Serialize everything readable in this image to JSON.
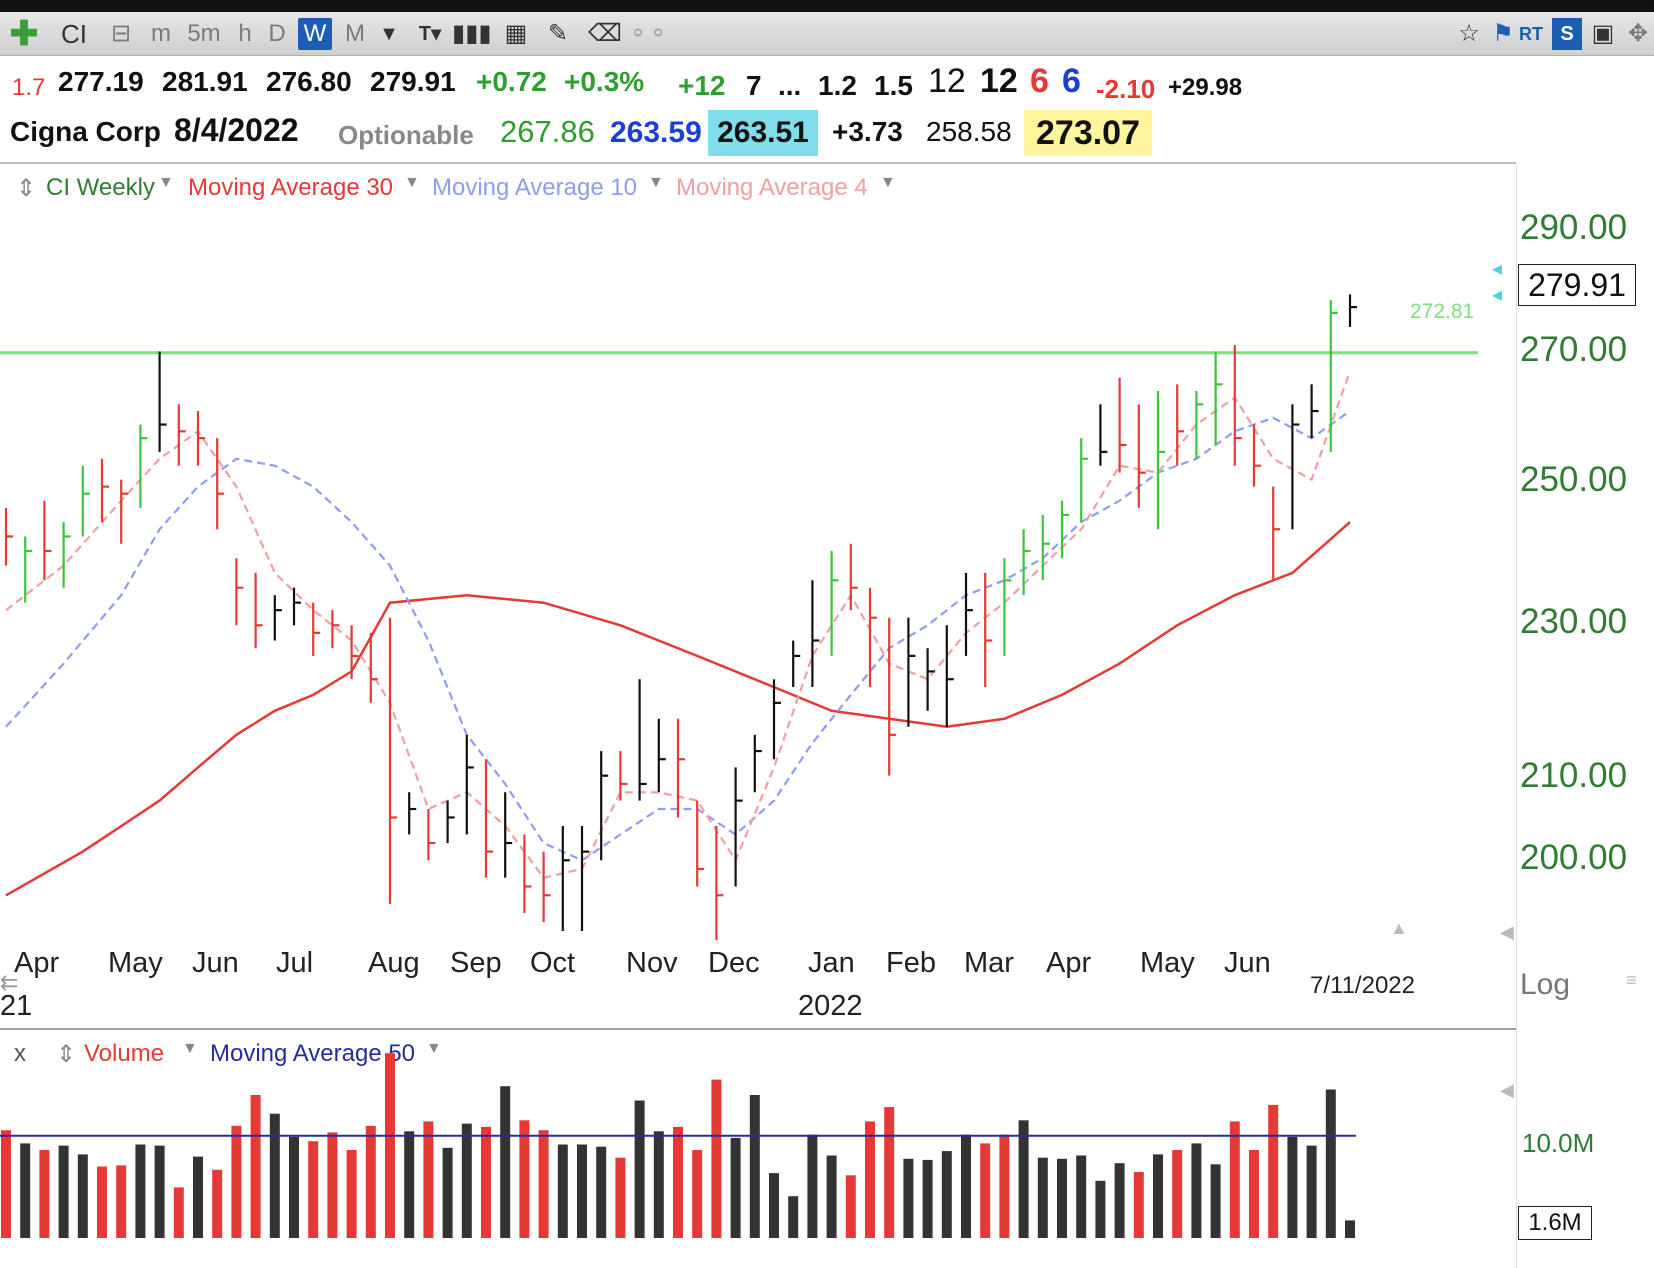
{
  "toolbar": {
    "symbol": "CI",
    "timeframes": [
      "m",
      "5m",
      "h",
      "D",
      "W",
      "M"
    ],
    "active_timeframe": "W",
    "right_badges": {
      "rt": "RT",
      "s": "S"
    }
  },
  "quote": {
    "prev": "1.7",
    "open": "277.19",
    "high": "281.91",
    "low": "276.80",
    "close": "279.91",
    "change": "+0.72",
    "change_pct": "+0.3%",
    "f1": "+12",
    "f2": "7",
    "f3": "...",
    "f4": "1.2",
    "f5": "1.5",
    "f6": "12",
    "f7": "12",
    "f8": "6",
    "f9": "6",
    "f10": "-2.10",
    "f11": "+29.98",
    "company": "Cigna Corp",
    "date": "8/4/2022",
    "optionable": "Optionable",
    "v1": "267.86",
    "v2": "263.59",
    "v3": "263.51",
    "v4": "+3.73",
    "v5": "258.58",
    "v6": "273.07"
  },
  "legend": {
    "series": "CI Weekly",
    "ma30": "Moving Average 30",
    "ma10": "Moving Average 10",
    "ma4": "Moving Average 4",
    "volume_close": "x",
    "volume": "Volume",
    "vol_ma": "Moving Average 50"
  },
  "colors": {
    "up_bar": "#3cc43c",
    "down_bar": "#e53935",
    "neutral_bar": "#111111",
    "ma30": "#e53935",
    "ma10": "#8f9cf0",
    "ma4": "#f0a0a0",
    "hline": "#7ee07e",
    "vol_ma": "#2a2a9e",
    "axis_text": "#2e7d32"
  },
  "y_axis": {
    "ticks": [
      "290.00",
      "270.00",
      "250.00",
      "230.00",
      "210.00",
      "200.00"
    ],
    "scale": "log",
    "scale_label": "Log",
    "last_price_label": "279.91"
  },
  "h_line": {
    "value": 272.81,
    "label": "272.81"
  },
  "x_axis": {
    "months": [
      "Apr",
      "May",
      "Jun",
      "Jul",
      "Aug",
      "Sep",
      "Oct",
      "Nov",
      "Dec",
      "Jan",
      "Feb",
      "Mar",
      "Apr",
      "May",
      "Jun"
    ],
    "year_label": "2022",
    "year_fragment": "21",
    "current_date": "7/11/2022"
  },
  "volume_axis": {
    "tick": "10.0M",
    "current": "1.6M"
  },
  "chart_data": {
    "type": "ohlc",
    "interval": "weekly",
    "scale": "log",
    "ylim": [
      196,
      300
    ],
    "bars": [
      {
        "h": 250,
        "l": 242,
        "c": 246,
        "t": "d"
      },
      {
        "h": 246,
        "l": 237,
        "c": 244,
        "t": "u"
      },
      {
        "h": 251,
        "l": 240,
        "c": 244,
        "t": "d"
      },
      {
        "h": 248,
        "l": 239,
        "c": 246,
        "t": "u"
      },
      {
        "h": 256,
        "l": 246,
        "c": 252,
        "t": "u"
      },
      {
        "h": 257,
        "l": 248,
        "c": 253,
        "t": "d"
      },
      {
        "h": 254,
        "l": 245,
        "c": 252,
        "t": "d"
      },
      {
        "h": 262,
        "l": 250,
        "c": 260,
        "t": "u"
      },
      {
        "h": 273,
        "l": 258,
        "c": 262,
        "t": "n"
      },
      {
        "h": 265,
        "l": 256,
        "c": 261,
        "t": "d"
      },
      {
        "h": 264,
        "l": 256,
        "c": 260,
        "t": "d"
      },
      {
        "h": 260,
        "l": 247,
        "c": 252,
        "t": "d"
      },
      {
        "h": 243,
        "l": 234,
        "c": 239,
        "t": "d"
      },
      {
        "h": 241,
        "l": 231,
        "c": 234,
        "t": "d"
      },
      {
        "h": 238,
        "l": 232,
        "c": 236,
        "t": "n"
      },
      {
        "h": 239,
        "l": 234,
        "c": 237,
        "t": "n"
      },
      {
        "h": 237,
        "l": 230,
        "c": 233,
        "t": "d"
      },
      {
        "h": 236,
        "l": 231,
        "c": 234,
        "t": "d"
      },
      {
        "h": 234,
        "l": 227,
        "c": 230,
        "t": "d"
      },
      {
        "h": 233,
        "l": 224,
        "c": 227,
        "t": "d"
      },
      {
        "h": 235,
        "l": 200,
        "c": 210,
        "t": "d"
      },
      {
        "h": 213,
        "l": 208,
        "c": 211,
        "t": "n"
      },
      {
        "h": 211,
        "l": 205,
        "c": 207,
        "t": "d"
      },
      {
        "h": 212,
        "l": 207,
        "c": 210,
        "t": "n"
      },
      {
        "h": 220,
        "l": 208,
        "c": 216,
        "t": "n"
      },
      {
        "h": 217,
        "l": 203,
        "c": 206,
        "t": "d"
      },
      {
        "h": 213,
        "l": 203,
        "c": 207,
        "t": "n"
      },
      {
        "h": 208,
        "l": 199,
        "c": 202,
        "t": "d"
      },
      {
        "h": 206,
        "l": 198,
        "c": 201,
        "t": "d"
      },
      {
        "h": 209,
        "l": 197,
        "c": 205,
        "t": "n"
      },
      {
        "h": 209,
        "l": 197,
        "c": 206,
        "t": "n"
      },
      {
        "h": 218,
        "l": 205,
        "c": 215,
        "t": "n"
      },
      {
        "h": 218,
        "l": 212,
        "c": 214,
        "t": "d"
      },
      {
        "h": 227,
        "l": 212,
        "c": 214,
        "t": "n"
      },
      {
        "h": 222,
        "l": 213,
        "c": 217,
        "t": "n"
      },
      {
        "h": 222,
        "l": 210,
        "c": 217,
        "t": "d"
      },
      {
        "h": 212,
        "l": 202,
        "c": 204,
        "t": "d"
      },
      {
        "h": 209,
        "l": 196,
        "c": 201,
        "t": "d"
      },
      {
        "h": 216,
        "l": 202,
        "c": 212,
        "t": "n"
      },
      {
        "h": 220,
        "l": 213,
        "c": 218,
        "t": "n"
      },
      {
        "h": 227,
        "l": 217,
        "c": 224,
        "t": "n"
      },
      {
        "h": 232,
        "l": 226,
        "c": 230,
        "t": "n"
      },
      {
        "h": 240,
        "l": 226,
        "c": 232,
        "t": "n"
      },
      {
        "h": 244,
        "l": 230,
        "c": 240,
        "t": "u"
      },
      {
        "h": 245,
        "l": 236,
        "c": 239,
        "t": "d"
      },
      {
        "h": 239,
        "l": 226,
        "c": 235,
        "t": "d"
      },
      {
        "h": 235,
        "l": 215,
        "c": 220,
        "t": "d"
      },
      {
        "h": 235,
        "l": 221,
        "c": 230,
        "t": "n"
      },
      {
        "h": 231,
        "l": 223,
        "c": 228,
        "t": "n"
      },
      {
        "h": 234,
        "l": 221,
        "c": 227,
        "t": "n"
      },
      {
        "h": 241,
        "l": 230,
        "c": 236,
        "t": "n"
      },
      {
        "h": 241,
        "l": 226,
        "c": 232,
        "t": "d"
      },
      {
        "h": 243,
        "l": 230,
        "c": 240,
        "t": "u"
      },
      {
        "h": 247,
        "l": 238,
        "c": 244,
        "t": "u"
      },
      {
        "h": 249,
        "l": 240,
        "c": 245,
        "t": "u"
      },
      {
        "h": 251,
        "l": 243,
        "c": 249,
        "t": "u"
      },
      {
        "h": 260,
        "l": 248,
        "c": 257,
        "t": "u"
      },
      {
        "h": 265,
        "l": 256,
        "c": 258,
        "t": "n"
      },
      {
        "h": 269,
        "l": 255,
        "c": 259,
        "t": "d"
      },
      {
        "h": 265,
        "l": 250,
        "c": 255,
        "t": "d"
      },
      {
        "h": 267,
        "l": 247,
        "c": 258,
        "t": "u"
      },
      {
        "h": 268,
        "l": 256,
        "c": 261,
        "t": "d"
      },
      {
        "h": 267,
        "l": 257,
        "c": 265,
        "t": "u"
      },
      {
        "h": 273,
        "l": 259,
        "c": 268,
        "t": "u"
      },
      {
        "h": 274,
        "l": 256,
        "c": 260,
        "t": "d"
      },
      {
        "h": 262,
        "l": 253,
        "c": 256,
        "t": "d"
      },
      {
        "h": 253,
        "l": 240,
        "c": 247,
        "t": "d"
      },
      {
        "h": 265,
        "l": 247,
        "c": 262,
        "t": "n"
      },
      {
        "h": 268,
        "l": 260,
        "c": 264,
        "t": "n"
      },
      {
        "h": 281,
        "l": 258,
        "c": 279,
        "t": "u"
      },
      {
        "h": 281.91,
        "l": 276.8,
        "c": 279.91,
        "t": "n"
      }
    ],
    "ma30": [
      [
        0,
        201
      ],
      [
        4,
        206
      ],
      [
        8,
        212
      ],
      [
        10,
        216
      ],
      [
        12,
        220
      ],
      [
        14,
        223
      ],
      [
        16,
        225
      ],
      [
        18,
        228
      ],
      [
        20,
        237
      ],
      [
        24,
        238
      ],
      [
        28,
        237
      ],
      [
        32,
        234
      ],
      [
        36,
        230
      ],
      [
        40,
        226
      ],
      [
        43,
        223
      ],
      [
        46,
        222
      ],
      [
        49,
        221
      ],
      [
        52,
        222
      ],
      [
        55,
        225
      ],
      [
        58,
        229
      ],
      [
        61,
        234
      ],
      [
        64,
        238
      ],
      [
        67,
        241
      ],
      [
        70,
        248
      ]
    ],
    "ma10": [
      [
        0,
        221
      ],
      [
        3,
        229
      ],
      [
        6,
        238
      ],
      [
        8,
        247
      ],
      [
        10,
        253
      ],
      [
        12,
        257
      ],
      [
        14,
        256
      ],
      [
        16,
        253
      ],
      [
        18,
        248
      ],
      [
        20,
        242
      ],
      [
        22,
        232
      ],
      [
        24,
        220
      ],
      [
        26,
        214
      ],
      [
        28,
        207
      ],
      [
        30,
        205
      ],
      [
        32,
        208
      ],
      [
        34,
        211
      ],
      [
        36,
        211
      ],
      [
        38,
        208
      ],
      [
        40,
        212
      ],
      [
        42,
        219
      ],
      [
        44,
        225
      ],
      [
        46,
        231
      ],
      [
        48,
        234
      ],
      [
        50,
        238
      ],
      [
        52,
        240
      ],
      [
        54,
        243
      ],
      [
        56,
        248
      ],
      [
        58,
        251
      ],
      [
        60,
        255
      ],
      [
        62,
        257
      ],
      [
        64,
        261
      ],
      [
        66,
        263
      ],
      [
        68,
        260
      ],
      [
        70,
        264
      ]
    ],
    "ma4": [
      [
        0,
        236
      ],
      [
        3,
        242
      ],
      [
        6,
        251
      ],
      [
        8,
        257
      ],
      [
        10,
        261
      ],
      [
        12,
        253
      ],
      [
        14,
        241
      ],
      [
        16,
        236
      ],
      [
        18,
        232
      ],
      [
        20,
        224
      ],
      [
        22,
        211
      ],
      [
        24,
        213
      ],
      [
        26,
        209
      ],
      [
        28,
        203
      ],
      [
        30,
        204
      ],
      [
        32,
        213
      ],
      [
        34,
        213
      ],
      [
        36,
        212
      ],
      [
        38,
        205
      ],
      [
        40,
        216
      ],
      [
        42,
        230
      ],
      [
        44,
        238
      ],
      [
        46,
        229
      ],
      [
        48,
        227
      ],
      [
        50,
        233
      ],
      [
        52,
        237
      ],
      [
        54,
        242
      ],
      [
        56,
        247
      ],
      [
        58,
        256
      ],
      [
        60,
        255
      ],
      [
        62,
        262
      ],
      [
        64,
        266
      ],
      [
        66,
        257
      ],
      [
        68,
        254
      ],
      [
        70,
        270
      ]
    ],
    "volume": [
      {
        "v": 9.8,
        "t": "d"
      },
      {
        "v": 8.6,
        "t": "n"
      },
      {
        "v": 8.0,
        "t": "d"
      },
      {
        "v": 8.4,
        "t": "n"
      },
      {
        "v": 7.6,
        "t": "n"
      },
      {
        "v": 6.5,
        "t": "d"
      },
      {
        "v": 6.6,
        "t": "d"
      },
      {
        "v": 8.5,
        "t": "n"
      },
      {
        "v": 8.4,
        "t": "n"
      },
      {
        "v": 4.6,
        "t": "d"
      },
      {
        "v": 7.4,
        "t": "n"
      },
      {
        "v": 6.2,
        "t": "d"
      },
      {
        "v": 10.2,
        "t": "d"
      },
      {
        "v": 13.0,
        "t": "d"
      },
      {
        "v": 11.3,
        "t": "n"
      },
      {
        "v": 9.2,
        "t": "n"
      },
      {
        "v": 8.8,
        "t": "d"
      },
      {
        "v": 9.6,
        "t": "d"
      },
      {
        "v": 8.0,
        "t": "d"
      },
      {
        "v": 10.2,
        "t": "d"
      },
      {
        "v": 16.8,
        "t": "d"
      },
      {
        "v": 9.7,
        "t": "n"
      },
      {
        "v": 10.6,
        "t": "d"
      },
      {
        "v": 8.2,
        "t": "n"
      },
      {
        "v": 10.4,
        "t": "n"
      },
      {
        "v": 10.1,
        "t": "d"
      },
      {
        "v": 13.8,
        "t": "n"
      },
      {
        "v": 10.7,
        "t": "d"
      },
      {
        "v": 9.8,
        "t": "d"
      },
      {
        "v": 8.5,
        "t": "n"
      },
      {
        "v": 8.5,
        "t": "n"
      },
      {
        "v": 8.3,
        "t": "n"
      },
      {
        "v": 7.3,
        "t": "d"
      },
      {
        "v": 12.5,
        "t": "n"
      },
      {
        "v": 9.7,
        "t": "n"
      },
      {
        "v": 10.1,
        "t": "d"
      },
      {
        "v": 8.0,
        "t": "d"
      },
      {
        "v": 14.4,
        "t": "d"
      },
      {
        "v": 9.1,
        "t": "n"
      },
      {
        "v": 13.0,
        "t": "n"
      },
      {
        "v": 5.9,
        "t": "n"
      },
      {
        "v": 3.8,
        "t": "n"
      },
      {
        "v": 9.4,
        "t": "n"
      },
      {
        "v": 7.5,
        "t": "n"
      },
      {
        "v": 5.7,
        "t": "d"
      },
      {
        "v": 10.6,
        "t": "d"
      },
      {
        "v": 11.9,
        "t": "d"
      },
      {
        "v": 7.2,
        "t": "n"
      },
      {
        "v": 7.1,
        "t": "n"
      },
      {
        "v": 7.9,
        "t": "n"
      },
      {
        "v": 9.4,
        "t": "n"
      },
      {
        "v": 8.6,
        "t": "d"
      },
      {
        "v": 9.4,
        "t": "d"
      },
      {
        "v": 10.7,
        "t": "n"
      },
      {
        "v": 7.3,
        "t": "n"
      },
      {
        "v": 7.2,
        "t": "n"
      },
      {
        "v": 7.5,
        "t": "n"
      },
      {
        "v": 5.2,
        "t": "n"
      },
      {
        "v": 6.8,
        "t": "n"
      },
      {
        "v": 6.0,
        "t": "d"
      },
      {
        "v": 7.6,
        "t": "n"
      },
      {
        "v": 8.0,
        "t": "d"
      },
      {
        "v": 8.6,
        "t": "n"
      },
      {
        "v": 6.7,
        "t": "n"
      },
      {
        "v": 10.6,
        "t": "d"
      },
      {
        "v": 8.0,
        "t": "d"
      },
      {
        "v": 12.1,
        "t": "d"
      },
      {
        "v": 9.2,
        "t": "n"
      },
      {
        "v": 8.4,
        "t": "n"
      },
      {
        "v": 13.5,
        "t": "n"
      },
      {
        "v": 1.6,
        "t": "n"
      }
    ],
    "volume_ma": 9.3,
    "volume_ylim": [
      0,
      18
    ]
  }
}
